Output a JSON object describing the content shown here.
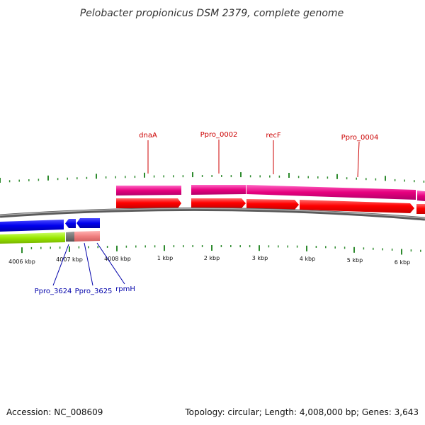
{
  "title": "Pelobacter propionicus DSM 2379, complete genome",
  "footer": {
    "accession": "Accession: NC_008609",
    "summary": "Topology: circular; Length: 4,008,000 bp; Genes: 3,643"
  },
  "ticks": {
    "labels": [
      "4006 kbp",
      "4007 kbp",
      "4008 kbp",
      "1 kbp",
      "2 kbp",
      "3 kbp",
      "4 kbp",
      "5 kbp",
      "6 kbp"
    ]
  },
  "genes_forward": {
    "labels": [
      "dnaA",
      "Ppro_0002",
      "recF",
      "Ppro_0004"
    ]
  },
  "genes_reverse": {
    "labels": [
      "Ppro_3624",
      "Ppro_3625",
      "rpmH"
    ]
  },
  "colors": {
    "forward_cds": "#ff0000",
    "forward_gene": "#e6007e",
    "reverse_cds": "#0000ee",
    "reverse_gene_green": "#99e600",
    "reverse_gene_pink": "#f08080",
    "backbone": "#888888",
    "tick": "#2e8b2e",
    "label_forward": "#cc0000",
    "label_reverse": "#0000aa"
  }
}
